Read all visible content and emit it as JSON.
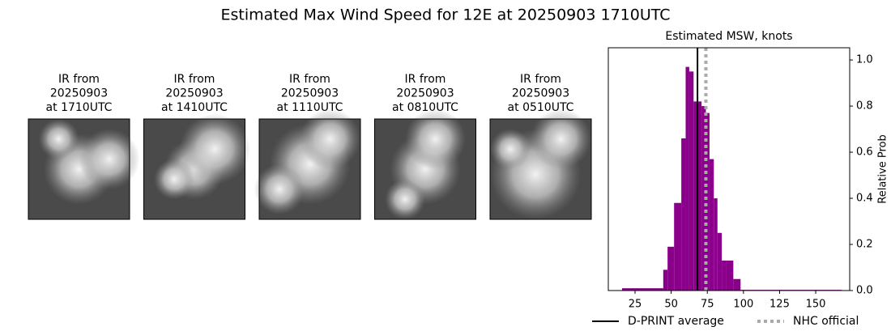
{
  "title": "Estimated Max Wind Speed for 12E at 20250903 1710UTC",
  "panels": [
    {
      "label": [
        "IR from",
        "20250903",
        "at 1710UTC"
      ]
    },
    {
      "label": [
        "IR from",
        "20250903",
        "at 1410UTC"
      ]
    },
    {
      "label": [
        "IR from",
        "20250903",
        "at 1110UTC"
      ]
    },
    {
      "label": [
        "IR from",
        "20250903",
        "at 0810UTC"
      ]
    },
    {
      "label": [
        "IR from",
        "20250903",
        "at 0510UTC"
      ]
    }
  ],
  "chart_data": {
    "type": "histogram",
    "title": "Estimated MSW, knots",
    "y_label": "Relative Prob",
    "bins": [
      16,
      44.5,
      47.5,
      52,
      57,
      60,
      62.5,
      65.5,
      68,
      71,
      74,
      76.5,
      79.5,
      82,
      85,
      88,
      93,
      98,
      168
    ],
    "values": [
      0.01,
      0.09,
      0.19,
      0.38,
      0.66,
      0.97,
      0.95,
      0.82,
      0.82,
      0.8,
      0.77,
      0.57,
      0.4,
      0.25,
      0.13,
      0.13,
      0.05,
      0.003
    ],
    "color": "#8b008b",
    "xlim": [
      6.5,
      173.5
    ],
    "ylim": [
      0,
      1.053
    ],
    "xticks": [
      25,
      50,
      75,
      100,
      125,
      150
    ],
    "yticks": [
      {
        "value": 0,
        "label": "0.0"
      },
      {
        "value": 0.2,
        "label": "0.2"
      },
      {
        "value": 0.4,
        "label": "0.4"
      },
      {
        "value": 0.6,
        "label": "0.6"
      },
      {
        "value": 0.8,
        "label": "0.8"
      },
      {
        "value": 1.0,
        "label": "1.0"
      }
    ],
    "lines": [
      {
        "name": "D-PRINT average",
        "value": 68.2,
        "color": "#000000",
        "style": "solid"
      },
      {
        "name": "NHC official",
        "value": 74,
        "color": "#aaaaaa",
        "style": "dotted"
      }
    ],
    "legend": "below"
  }
}
